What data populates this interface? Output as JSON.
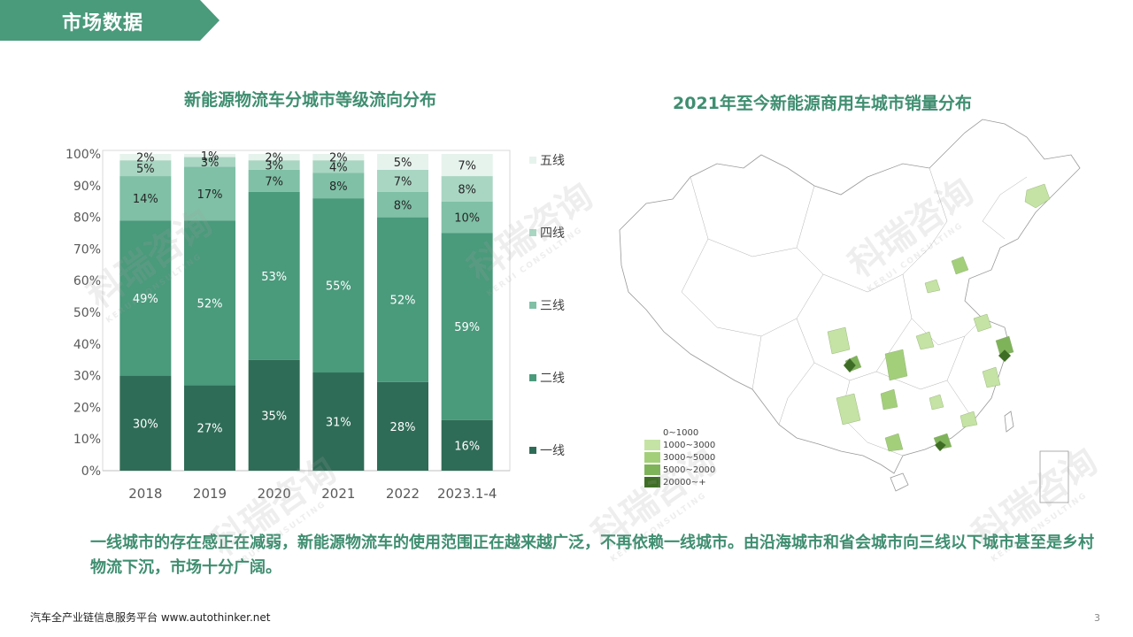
{
  "header": {
    "title": "市场数据"
  },
  "bar_chart": {
    "title": "新能源物流车分城市等级流向分布"
  },
  "map_chart": {
    "title": "2021年至今新能源商用车城市销量分布",
    "legend": [
      {
        "label": "0~1000",
        "color": "#ffffff"
      },
      {
        "label": "1000~3000",
        "color": "#c5e3a4"
      },
      {
        "label": "3000~5000",
        "color": "#a3cf7b"
      },
      {
        "label": "5000~2000",
        "color": "#7fb35a"
      },
      {
        "label": "20000~+",
        "color": "#3e6e25"
      }
    ]
  },
  "chart_data": {
    "type": "bar",
    "stacked": true,
    "categories": [
      "2018",
      "2019",
      "2020",
      "2021",
      "2022",
      "2023.1-4"
    ],
    "ylim": [
      0,
      100
    ],
    "yticks": [
      "0%",
      "10%",
      "20%",
      "30%",
      "40%",
      "50%",
      "60%",
      "70%",
      "80%",
      "90%",
      "100%"
    ],
    "legend_position": "right",
    "grid": false,
    "series": [
      {
        "name": "一线",
        "color": "#2f6c57",
        "values": [
          30,
          27,
          35,
          31,
          28,
          16
        ]
      },
      {
        "name": "二线",
        "color": "#4a9a7c",
        "values": [
          49,
          52,
          53,
          55,
          52,
          59
        ]
      },
      {
        "name": "三线",
        "color": "#7fc0a6",
        "values": [
          14,
          17,
          7,
          8,
          8,
          10
        ]
      },
      {
        "name": "四线",
        "color": "#a9d6c3",
        "values": [
          5,
          3,
          3,
          4,
          7,
          8
        ]
      },
      {
        "name": "五线",
        "color": "#e6f3ed",
        "values": [
          2,
          1,
          2,
          2,
          5,
          7
        ]
      }
    ]
  },
  "summary_text": "一线城市的存在感正在减弱，新能源物流车的使用范围正在越来越广泛，不再依赖一线城市。由沿海城市和省会城市向三线以下城市甚至是乡村物流下沉，市场十分广阔。",
  "footer": {
    "text": "汽车全产业链信息服务平台 www.autothinker.net",
    "page": "3"
  },
  "watermark": {
    "text": "科瑞咨询",
    "sub": "KERUI CONSULTING"
  }
}
